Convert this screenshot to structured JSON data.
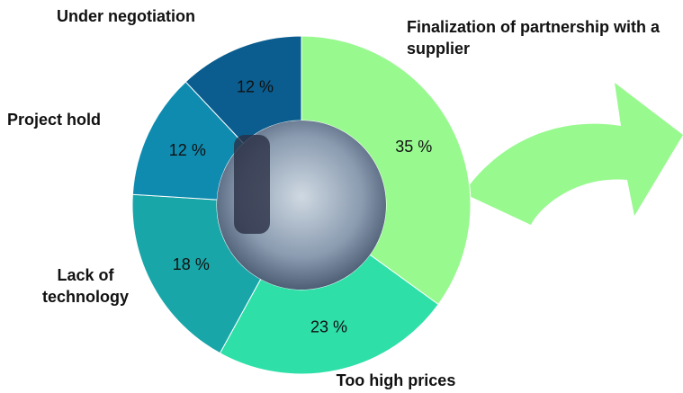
{
  "chart_data": {
    "type": "donut",
    "categories": [
      "Finalization of partnership with a supplier",
      "Too high prices",
      "Lack of technology",
      "Project hold",
      "Under negotiation"
    ],
    "values": [
      35,
      23,
      18,
      12,
      12
    ],
    "value_labels": [
      "35 %",
      "23 %",
      "18 %",
      "12 %",
      "12 %"
    ],
    "colors": [
      "#98f98f",
      "#2edfa8",
      "#19a6a8",
      "#0f8bb0",
      "#0a5d8e"
    ]
  }
}
